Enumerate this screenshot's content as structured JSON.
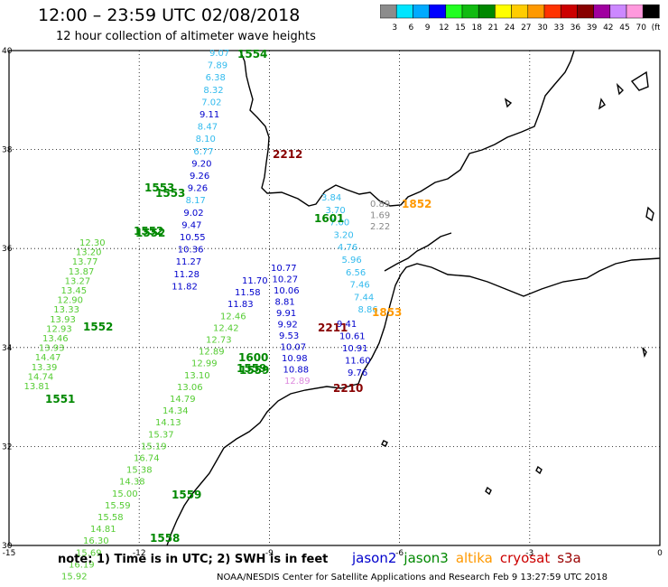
{
  "header": {
    "title": "12:00 – 23:59 UTC 02/08/2018",
    "subtitle": "12 hour collection of altimeter wave heights"
  },
  "colorbar": {
    "ticks": [
      "3",
      "6",
      "9",
      "12",
      "15",
      "18",
      "21",
      "24",
      "27",
      "30",
      "33",
      "36",
      "39",
      "42",
      "45",
      "70",
      "(ft)"
    ],
    "colors": [
      "#8c8c8c",
      "#00e5ff",
      "#00aaff",
      "#0000ff",
      "#22ff22",
      "#11bb11",
      "#008800",
      "#ffff00",
      "#ffcc00",
      "#ff9900",
      "#ff3300",
      "#cc0000",
      "#880000",
      "#a000a0",
      "#cc88ff",
      "#ff99dd",
      "#000000"
    ]
  },
  "axes": {
    "lon_labels": [
      "-15",
      "-12",
      "-9",
      "-6",
      "-3",
      "0"
    ],
    "lat_labels": [
      "40",
      "38",
      "36",
      "34",
      "32",
      "30"
    ],
    "lon_values": [
      -15,
      -12,
      -9,
      -6,
      -3,
      0
    ],
    "lat_values": [
      40,
      38,
      36,
      34,
      32,
      30
    ]
  },
  "satellite_colors": {
    "jason2": "#0000cc",
    "jason3": "#008800",
    "altika": "#ff9900",
    "cryosat": "#cc0000",
    "s3a": "#990000"
  },
  "tracks": [
    {
      "time": "1554",
      "color": "#55cc33",
      "labels": [
        {
          "v": "9.07",
          "c": "#33bbee"
        },
        {
          "v": "7.89",
          "c": "#33bbee"
        },
        {
          "v": "6.38",
          "c": "#33bbee"
        },
        {
          "v": "8.32",
          "c": "#33bbee"
        },
        {
          "v": "7.02",
          "c": "#33bbee"
        },
        {
          "v": "9.11",
          "c": "#0000cc"
        },
        {
          "v": "8.47",
          "c": "#33bbee"
        },
        {
          "v": "8.10",
          "c": "#33bbee"
        },
        {
          "v": "6.77",
          "c": "#33bbee"
        },
        {
          "v": "9.20",
          "c": "#0000cc"
        },
        {
          "v": "9.26",
          "c": "#0000cc"
        },
        {
          "v": "9.26",
          "c": "#0000cc"
        },
        {
          "v": "8.17",
          "c": "#33bbee"
        },
        {
          "v": "9.02",
          "c": "#0000cc"
        },
        {
          "v": "9.47",
          "c": "#0000cc"
        },
        {
          "v": "10.55",
          "c": "#0000cc"
        },
        {
          "v": "10.36",
          "c": "#0000cc"
        },
        {
          "v": "11.27",
          "c": "#0000cc"
        },
        {
          "v": "11.28",
          "c": "#0000cc"
        },
        {
          "v": "11.82",
          "c": "#0000cc"
        }
      ]
    },
    {
      "time": "1852",
      "color": "#ff9900",
      "labels": [
        {
          "v": "0.89",
          "c": "#888888"
        },
        {
          "v": "1.69",
          "c": "#888888"
        },
        {
          "v": "2.22",
          "c": "#888888"
        }
      ]
    },
    {
      "time": "1601",
      "color": "#008800",
      "labels": [
        {
          "v": "3.84",
          "c": "#33bbee"
        },
        {
          "v": "3.70",
          "c": "#33bbee"
        },
        {
          "v": "7.00",
          "c": "#33bbee"
        },
        {
          "v": "3.20",
          "c": "#33bbee"
        },
        {
          "v": "4.76",
          "c": "#33bbee"
        },
        {
          "v": "5.96",
          "c": "#33bbee"
        },
        {
          "v": "6.56",
          "c": "#33bbee"
        },
        {
          "v": "7.46",
          "c": "#33bbee"
        },
        {
          "v": "7.44",
          "c": "#33bbee"
        },
        {
          "v": "8.86",
          "c": "#33bbee"
        }
      ]
    },
    {
      "time": "1853",
      "color": "#ff9900",
      "labels": [
        {
          "v": "9.41",
          "c": "#0000cc"
        },
        {
          "v": "10.61",
          "c": "#0000cc"
        },
        {
          "v": "10.91",
          "c": "#0000cc"
        },
        {
          "v": "11.60",
          "c": "#0000cc"
        },
        {
          "v": "9.76",
          "c": "#0000cc"
        }
      ]
    },
    {
      "time": "2211",
      "color": "#990000",
      "labels": [
        {
          "v": "10.77",
          "c": "#0000cc"
        },
        {
          "v": "10.27",
          "c": "#0000cc"
        },
        {
          "v": "10.06",
          "c": "#0000cc"
        },
        {
          "v": "8.81",
          "c": "#0000cc"
        },
        {
          "v": "9.91",
          "c": "#0000cc"
        },
        {
          "v": "9.92",
          "c": "#0000cc"
        },
        {
          "v": "9.53",
          "c": "#0000cc"
        },
        {
          "v": "10.07",
          "c": "#0000cc"
        },
        {
          "v": "10.98",
          "c": "#0000cc"
        },
        {
          "v": "10.88",
          "c": "#0000cc"
        },
        {
          "v": "12.89",
          "c": "#dd88dd"
        }
      ]
    },
    {
      "time": "1552",
      "color": "#55cc33",
      "labels": [
        {
          "v": "12.30",
          "c": "#55cc33"
        },
        {
          "v": "13.20",
          "c": "#55cc33"
        },
        {
          "v": "13.77",
          "c": "#55cc33"
        },
        {
          "v": "13.87",
          "c": "#55cc33"
        },
        {
          "v": "13.27",
          "c": "#55cc33"
        },
        {
          "v": "13.45",
          "c": "#55cc33"
        },
        {
          "v": "12.90",
          "c": "#55cc33"
        },
        {
          "v": "13.33",
          "c": "#55cc33"
        },
        {
          "v": "13.93",
          "c": "#55cc33"
        },
        {
          "v": "12.93",
          "c": "#55cc33"
        },
        {
          "v": "13.46",
          "c": "#55cc33"
        },
        {
          "v": "13.93",
          "c": "#55cc33"
        },
        {
          "v": "14.47",
          "c": "#55cc33"
        },
        {
          "v": "13.39",
          "c": "#55cc33"
        },
        {
          "v": "14.74",
          "c": "#55cc33"
        },
        {
          "v": "13.81",
          "c": "#55cc33"
        }
      ]
    },
    {
      "time": "1600",
      "color": "#008800",
      "labels": [
        {
          "v": "11.70",
          "c": "#0000cc"
        },
        {
          "v": "11.58",
          "c": "#0000cc"
        },
        {
          "v": "11.83",
          "c": "#0000cc"
        },
        {
          "v": "12.46",
          "c": "#55cc33"
        },
        {
          "v": "12.42",
          "c": "#55cc33"
        },
        {
          "v": "12.73",
          "c": "#55cc33"
        },
        {
          "v": "12.89",
          "c": "#55cc33"
        },
        {
          "v": "12.99",
          "c": "#55cc33"
        },
        {
          "v": "13.10",
          "c": "#55cc33"
        },
        {
          "v": "13.06",
          "c": "#55cc33"
        },
        {
          "v": "14.79",
          "c": "#55cc33"
        },
        {
          "v": "14.34",
          "c": "#55cc33"
        },
        {
          "v": "14.13",
          "c": "#55cc33"
        },
        {
          "v": "15.37",
          "c": "#55cc33"
        },
        {
          "v": "15.19",
          "c": "#55cc33"
        },
        {
          "v": "16.74",
          "c": "#55cc33"
        },
        {
          "v": "15.38",
          "c": "#55cc33"
        },
        {
          "v": "14.38",
          "c": "#55cc33"
        },
        {
          "v": "15.00",
          "c": "#55cc33"
        },
        {
          "v": "15.59",
          "c": "#55cc33"
        },
        {
          "v": "15.58",
          "c": "#55cc33"
        },
        {
          "v": "14.81",
          "c": "#55cc33"
        },
        {
          "v": "16.30",
          "c": "#55cc33"
        },
        {
          "v": "15.69",
          "c": "#55cc33"
        },
        {
          "v": "16.19",
          "c": "#55cc33"
        },
        {
          "v": "15.92",
          "c": "#55cc33"
        }
      ]
    }
  ],
  "time_labels": [
    {
      "t": "1554",
      "c": "#008800"
    },
    {
      "t": "2212",
      "c": "#880000"
    },
    {
      "t": "1553",
      "c": "#008800"
    },
    {
      "t": "1553",
      "c": "#008800"
    },
    {
      "t": "1601",
      "c": "#008800"
    },
    {
      "t": "1852",
      "c": "#ff9900"
    },
    {
      "t": "1552",
      "c": "#008800"
    },
    {
      "t": "1552",
      "c": "#008800"
    },
    {
      "t": "1853",
      "c": "#ff9900"
    },
    {
      "t": "2211",
      "c": "#880000"
    },
    {
      "t": "1552",
      "c": "#008800"
    },
    {
      "t": "1600",
      "c": "#008800"
    },
    {
      "t": "1559",
      "c": "#008800"
    },
    {
      "t": "1559",
      "c": "#008800"
    },
    {
      "t": "2210",
      "c": "#880000"
    },
    {
      "t": "1551",
      "c": "#008800"
    },
    {
      "t": "1559",
      "c": "#008800"
    },
    {
      "t": "1558",
      "c": "#008800"
    }
  ],
  "footer": {
    "note": "note: 1) Time is in UTC; 2) SWH is in feet",
    "legend": [
      {
        "name": "jason2",
        "color": "#0000cc"
      },
      {
        "name": "jason3",
        "color": "#008800"
      },
      {
        "name": "altika",
        "color": "#ff9900"
      },
      {
        "name": "cryosat",
        "color": "#cc0000"
      },
      {
        "name": "s3a",
        "color": "#990000"
      }
    ],
    "credit": "NOAA/NESDIS Center for Satellite Applications and Research    Feb  9 13:27:59 UTC 2018"
  }
}
